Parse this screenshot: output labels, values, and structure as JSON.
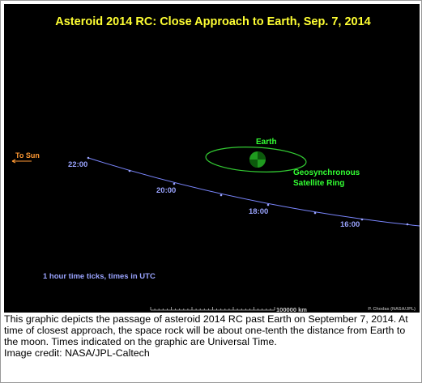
{
  "title": "Asteroid 2014 RC:  Close Approach to Earth, Sep. 7, 2014",
  "labels": {
    "sun": "To Sun",
    "earth": "Earth",
    "ring": [
      "Geosynchronous",
      "Satellite Ring"
    ]
  },
  "times": [
    "22:00",
    "20:00",
    "18:00",
    "16:00"
  ],
  "note": "1 hour time ticks, times in UTC",
  "scale": "100000 km",
  "credit": "P. Chodas (NASA/JPL)",
  "caption": {
    "text": "This graphic depicts the passage of asteroid 2014 RC past Earth on September 7, 2014. At time of closest approach, the space rock will be about one-tenth the distance from Earth to the moon. Times indicated on the graphic are Universal Time.",
    "image_credit": "Image credit: NASA/JPL-Caltech"
  }
}
